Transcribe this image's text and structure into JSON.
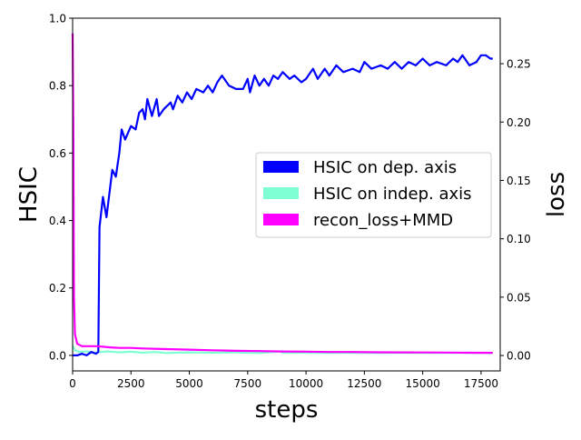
{
  "chart_data": {
    "type": "line",
    "xlabel": "steps",
    "ylabel": "HSIC",
    "ylabel_right": "loss",
    "xlim": [
      0,
      18320
    ],
    "ylim": [
      -0.046,
      1.0
    ],
    "ylim_right": [
      -0.0132,
      0.289
    ],
    "xticks": [
      0,
      2500,
      5000,
      7500,
      10000,
      12500,
      15000,
      17500
    ],
    "yticks": [
      "0.0",
      "0.2",
      "0.4",
      "0.6",
      "0.8",
      "1.0"
    ],
    "yticks_right": [
      "0.00",
      "0.05",
      "0.10",
      "0.15",
      "0.20",
      "0.25"
    ],
    "grid": false,
    "legend_placement": "center-right",
    "series": [
      {
        "name": "HSIC on dep. axis",
        "axis": "left",
        "color": "#0000ff",
        "x": [
          0,
          200,
          400,
          600,
          800,
          1000,
          1100,
          1150,
          1300,
          1450,
          1700,
          1850,
          2000,
          2100,
          2250,
          2500,
          2700,
          2850,
          3000,
          3100,
          3200,
          3400,
          3600,
          3700,
          3900,
          4200,
          4300,
          4500,
          4700,
          4900,
          5100,
          5300,
          5600,
          5800,
          6000,
          6200,
          6400,
          6700,
          7000,
          7300,
          7500,
          7600,
          7800,
          8000,
          8200,
          8400,
          8600,
          8800,
          9000,
          9300,
          9500,
          9800,
          10000,
          10300,
          10500,
          10800,
          11000,
          11300,
          11600,
          12000,
          12300,
          12500,
          12800,
          13200,
          13500,
          13800,
          14100,
          14400,
          14700,
          15000,
          15300,
          15600,
          16000,
          16300,
          16500,
          16700,
          17000,
          17300,
          17500,
          17700,
          17900,
          18000
        ],
        "y": [
          0.0,
          0.0,
          0.005,
          0.0,
          0.01,
          0.005,
          0.01,
          0.38,
          0.47,
          0.41,
          0.55,
          0.53,
          0.6,
          0.67,
          0.64,
          0.68,
          0.67,
          0.72,
          0.73,
          0.7,
          0.76,
          0.71,
          0.76,
          0.71,
          0.73,
          0.75,
          0.73,
          0.77,
          0.75,
          0.78,
          0.76,
          0.79,
          0.78,
          0.8,
          0.78,
          0.81,
          0.83,
          0.8,
          0.79,
          0.79,
          0.82,
          0.78,
          0.83,
          0.8,
          0.82,
          0.8,
          0.83,
          0.82,
          0.84,
          0.82,
          0.83,
          0.81,
          0.82,
          0.85,
          0.82,
          0.85,
          0.83,
          0.86,
          0.84,
          0.85,
          0.84,
          0.87,
          0.85,
          0.86,
          0.85,
          0.87,
          0.85,
          0.87,
          0.86,
          0.88,
          0.86,
          0.87,
          0.86,
          0.88,
          0.87,
          0.89,
          0.86,
          0.87,
          0.89,
          0.89,
          0.88,
          0.88
        ]
      },
      {
        "name": "HSIC on indep. axis",
        "axis": "left",
        "color": "#7fffd4",
        "x": [
          0,
          100,
          300,
          600,
          900,
          1200,
          1500,
          2000,
          2500,
          3000,
          3500,
          4000,
          5000,
          6000,
          7000,
          8000,
          8900,
          9000,
          10000,
          11000,
          12000,
          13000,
          14000,
          15000,
          16000,
          17000,
          18000
        ],
        "y": [
          0.03,
          0.015,
          0.01,
          0.012,
          0.008,
          0.01,
          0.012,
          0.009,
          0.011,
          0.008,
          0.01,
          0.007,
          0.009,
          0.008,
          0.009,
          0.007,
          0.012,
          0.008,
          0.008,
          0.007,
          0.008,
          0.007,
          0.008,
          0.007,
          0.008,
          0.007,
          0.007
        ]
      },
      {
        "name": "recon_loss+MMD",
        "axis": "right",
        "color": "#ff00ff",
        "x": [
          0,
          30,
          60,
          100,
          200,
          400,
          700,
          1000,
          1300,
          1600,
          2000,
          2500,
          3000,
          4000,
          5000,
          6000,
          7000,
          8000,
          9000,
          10000,
          11000,
          12000,
          13000,
          14000,
          15000,
          16000,
          17000,
          18000
        ],
        "y": [
          0.276,
          0.2,
          0.05,
          0.018,
          0.01,
          0.008,
          0.008,
          0.008,
          0.0075,
          0.007,
          0.0065,
          0.0065,
          0.006,
          0.0055,
          0.005,
          0.0045,
          0.004,
          0.0038,
          0.0035,
          0.0033,
          0.003,
          0.003,
          0.0028,
          0.0027,
          0.0026,
          0.0025,
          0.0024,
          0.0023
        ]
      }
    ]
  }
}
